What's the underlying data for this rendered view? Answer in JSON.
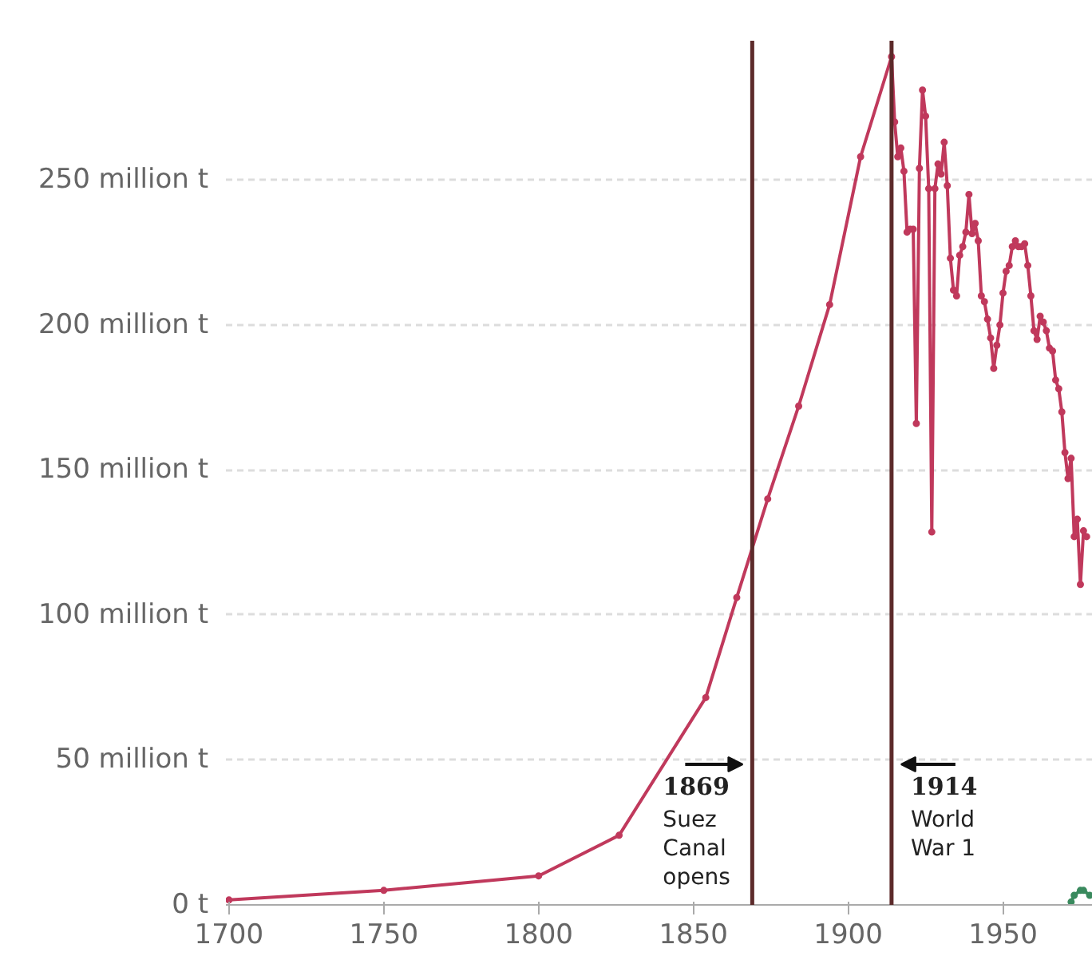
{
  "chart_data": {
    "type": "line",
    "xlim": [
      1699,
      1979
    ],
    "xticks": [
      1700,
      1750,
      1800,
      1850,
      1900,
      1950
    ],
    "ylim": [
      0,
      298
    ],
    "yticks": [
      {
        "value": 0,
        "label": "0 t"
      },
      {
        "value": 50,
        "label": "50 million t"
      },
      {
        "value": 100,
        "label": "100 million t"
      },
      {
        "value": 150,
        "label": "150 million t"
      },
      {
        "value": 200,
        "label": "200 million t"
      },
      {
        "value": 250,
        "label": "250 million t"
      }
    ],
    "grid": "y",
    "marker": "circle",
    "line_style": "solid",
    "series": [
      {
        "color": "#c0395c",
        "x": [
          1700,
          1750,
          1800,
          1826,
          1854,
          1864,
          1874,
          1884,
          1894,
          1904,
          1914,
          1915,
          1916,
          1917,
          1918,
          1919,
          1920,
          1921,
          1922,
          1923,
          1924,
          1925,
          1926,
          1927,
          1928,
          1929,
          1930,
          1931,
          1932,
          1933,
          1934,
          1935,
          1936,
          1937,
          1938,
          1939,
          1940,
          1941,
          1942,
          1943,
          1944,
          1945,
          1946,
          1947,
          1948,
          1949,
          1950,
          1951,
          1952,
          1953,
          1954,
          1955,
          1956,
          1957,
          1958,
          1959,
          1960,
          1961,
          1962,
          1963,
          1964,
          1965,
          1966,
          1967,
          1968,
          1969,
          1970,
          1971,
          1972,
          1973,
          1974,
          1975,
          1976,
          1977
        ],
        "values": [
          1.7,
          5,
          10,
          24,
          71.5,
          106,
          140,
          172,
          207,
          258,
          292.5,
          270,
          258,
          261,
          253,
          232,
          233,
          233,
          166,
          254,
          281,
          272,
          247,
          128.6,
          247,
          255.5,
          252,
          263,
          248,
          223,
          212,
          210,
          224,
          227,
          232,
          245,
          231.5,
          235,
          229,
          210,
          208,
          202,
          195.5,
          185,
          193,
          200,
          211,
          218.5,
          220.5,
          227,
          229,
          227,
          227,
          228,
          220.5,
          210,
          198,
          195,
          203,
          201,
          198,
          192,
          191,
          181,
          178,
          170,
          156,
          147,
          154,
          127,
          133,
          110.5,
          129,
          127
        ]
      },
      {
        "color": "#3a8a5e",
        "x": [
          1972,
          1973,
          1975,
          1976,
          1978
        ],
        "values": [
          1,
          3.3,
          5,
          5,
          3.3
        ]
      }
    ],
    "ref_lines": [
      {
        "axis": "x",
        "value": 1869,
        "label": "1869 Suez Canal opens",
        "color": "#5c2a2a"
      },
      {
        "axis": "x",
        "value": 1914,
        "label": "1914 World War 1",
        "color": "#5c2a2a"
      }
    ]
  }
}
